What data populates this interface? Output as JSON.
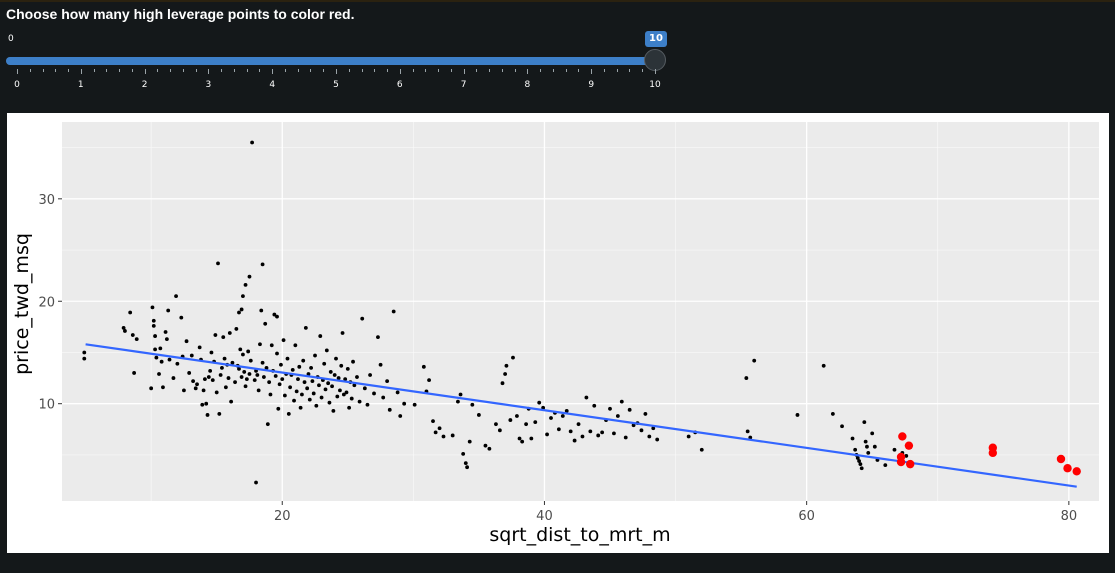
{
  "prompt": "Choose how many high leverage points to color red.",
  "slider": {
    "min": 0,
    "max": 10,
    "value": 10,
    "min_label": "0",
    "value_label": "10",
    "tick_labels": [
      "0",
      "1",
      "2",
      "3",
      "4",
      "5",
      "6",
      "7",
      "8",
      "9",
      "10"
    ],
    "accent_color": "#3d7fc8"
  },
  "chart_data": {
    "type": "scatter",
    "xlabel": "sqrt_dist_to_mrt_m",
    "ylabel": "price_twd_msq",
    "xlim": [
      3.2,
      82.3
    ],
    "ylim": [
      0.5,
      37.5
    ],
    "x_ticks": [
      20,
      40,
      60,
      80
    ],
    "x_tick_labels": [
      "20",
      "40",
      "60",
      "80"
    ],
    "y_ticks": [
      10,
      20,
      30
    ],
    "y_tick_labels": [
      "10",
      "20",
      "30"
    ],
    "grid": true,
    "panel_background": "#ebebeb",
    "point_color": "#000000",
    "highlight_color": "#ff0000",
    "fit_color": "#3366ff",
    "fit_line": {
      "x": [
        5.0,
        80.6
      ],
      "y": [
        15.8,
        1.9
      ]
    },
    "points": [
      [
        4.9,
        15.0
      ],
      [
        4.9,
        14.4
      ],
      [
        7.9,
        17.4
      ],
      [
        8.0,
        17.1
      ],
      [
        8.4,
        18.9
      ],
      [
        8.6,
        16.7
      ],
      [
        8.7,
        13.0
      ],
      [
        8.9,
        16.3
      ],
      [
        10.0,
        11.5
      ],
      [
        10.1,
        19.4
      ],
      [
        10.2,
        18.1
      ],
      [
        10.2,
        17.6
      ],
      [
        10.3,
        16.6
      ],
      [
        10.3,
        15.3
      ],
      [
        10.4,
        14.5
      ],
      [
        10.6,
        12.9
      ],
      [
        10.7,
        15.4
      ],
      [
        10.8,
        14.1
      ],
      [
        10.9,
        11.6
      ],
      [
        11.1,
        17.0
      ],
      [
        11.2,
        16.3
      ],
      [
        11.3,
        19.1
      ],
      [
        11.4,
        14.3
      ],
      [
        11.7,
        12.5
      ],
      [
        11.9,
        20.5
      ],
      [
        12.0,
        13.9
      ],
      [
        12.3,
        18.4
      ],
      [
        12.4,
        14.6
      ],
      [
        12.5,
        11.3
      ],
      [
        12.7,
        16.1
      ],
      [
        12.9,
        13.0
      ],
      [
        13.1,
        14.7
      ],
      [
        13.2,
        12.2
      ],
      [
        13.4,
        11.5
      ],
      [
        13.5,
        11.9
      ],
      [
        13.7,
        15.5
      ],
      [
        13.8,
        14.3
      ],
      [
        13.9,
        9.9
      ],
      [
        14.0,
        11.3
      ],
      [
        14.1,
        12.4
      ],
      [
        14.2,
        10.0
      ],
      [
        14.3,
        8.9
      ],
      [
        14.4,
        12.6
      ],
      [
        14.5,
        13.2
      ],
      [
        14.6,
        15.0
      ],
      [
        14.7,
        12.3
      ],
      [
        14.8,
        14.1
      ],
      [
        14.9,
        16.7
      ],
      [
        15.0,
        11.1
      ],
      [
        15.1,
        23.7
      ],
      [
        15.2,
        9.0
      ],
      [
        15.3,
        12.8
      ],
      [
        15.4,
        13.5
      ],
      [
        15.5,
        16.5
      ],
      [
        15.6,
        14.4
      ],
      [
        15.7,
        11.6
      ],
      [
        15.8,
        13.8
      ],
      [
        15.9,
        12.5
      ],
      [
        16.0,
        16.9
      ],
      [
        16.1,
        10.2
      ],
      [
        16.2,
        14.0
      ],
      [
        16.4,
        12.1
      ],
      [
        16.5,
        17.3
      ],
      [
        16.6,
        13.7
      ],
      [
        16.7,
        13.4
      ],
      [
        16.8,
        15.3
      ],
      [
        16.9,
        12.6
      ],
      [
        17.0,
        14.8
      ],
      [
        17.1,
        13.1
      ],
      [
        17.2,
        11.7
      ],
      [
        17.3,
        12.4
      ],
      [
        17.4,
        15.1
      ],
      [
        17.5,
        12.9
      ],
      [
        17.6,
        14.2
      ],
      [
        17.7,
        35.5
      ],
      [
        17.9,
        12.3
      ],
      [
        18.0,
        13.2
      ],
      [
        18.1,
        12.8
      ],
      [
        18.2,
        11.3
      ],
      [
        18.3,
        15.8
      ],
      [
        18.4,
        19.1
      ],
      [
        18.5,
        14.0
      ],
      [
        18.6,
        12.6
      ],
      [
        18.7,
        17.8
      ],
      [
        18.8,
        13.5
      ],
      [
        18.9,
        8.0
      ],
      [
        19.0,
        12.1
      ],
      [
        19.1,
        10.9
      ],
      [
        19.2,
        15.7
      ],
      [
        19.3,
        13.2
      ],
      [
        19.4,
        18.7
      ],
      [
        19.5,
        12.7
      ],
      [
        19.6,
        14.9
      ],
      [
        19.7,
        9.5
      ],
      [
        19.8,
        11.9
      ],
      [
        19.9,
        13.8
      ],
      [
        20.0,
        12.4
      ],
      [
        20.1,
        16.2
      ],
      [
        20.2,
        10.8
      ],
      [
        20.3,
        12.9
      ],
      [
        20.4,
        14.4
      ],
      [
        20.5,
        9.0
      ],
      [
        20.6,
        11.6
      ],
      [
        20.7,
        12.8
      ],
      [
        20.8,
        13.3
      ],
      [
        20.9,
        10.3
      ],
      [
        21.0,
        15.7
      ],
      [
        21.1,
        11.2
      ],
      [
        21.2,
        12.4
      ],
      [
        21.3,
        13.6
      ],
      [
        21.4,
        9.6
      ],
      [
        21.5,
        10.9
      ],
      [
        21.6,
        14.2
      ],
      [
        21.7,
        12.1
      ],
      [
        21.8,
        17.4
      ],
      [
        21.9,
        11.5
      ],
      [
        22.0,
        12.9
      ],
      [
        22.1,
        10.4
      ],
      [
        22.2,
        13.5
      ],
      [
        22.3,
        12.2
      ],
      [
        22.4,
        11.0
      ],
      [
        22.5,
        14.7
      ],
      [
        22.6,
        9.8
      ],
      [
        22.7,
        12.6
      ],
      [
        22.8,
        11.8
      ],
      [
        22.9,
        16.6
      ],
      [
        23.0,
        10.6
      ],
      [
        23.1,
        12.3
      ],
      [
        23.2,
        13.9
      ],
      [
        23.3,
        11.4
      ],
      [
        23.4,
        15.2
      ],
      [
        23.5,
        12.0
      ],
      [
        23.6,
        10.1
      ],
      [
        23.7,
        13.1
      ],
      [
        23.8,
        11.7
      ],
      [
        23.9,
        9.3
      ],
      [
        24.0,
        12.8
      ],
      [
        24.1,
        14.4
      ],
      [
        24.2,
        10.7
      ],
      [
        24.3,
        12.5
      ],
      [
        24.4,
        11.3
      ],
      [
        24.5,
        13.7
      ],
      [
        24.6,
        16.9
      ],
      [
        24.7,
        10.9
      ],
      [
        24.8,
        12.4
      ],
      [
        24.9,
        11.1
      ],
      [
        25.0,
        13.4
      ],
      [
        25.1,
        9.6
      ],
      [
        25.2,
        12.1
      ],
      [
        25.3,
        10.5
      ],
      [
        25.4,
        14.1
      ],
      [
        25.5,
        11.8
      ],
      [
        25.7,
        12.6
      ],
      [
        25.9,
        10.2
      ],
      [
        26.1,
        18.3
      ],
      [
        26.3,
        11.5
      ],
      [
        26.5,
        9.9
      ],
      [
        26.7,
        12.8
      ],
      [
        27.0,
        11.0
      ],
      [
        27.3,
        16.5
      ],
      [
        27.5,
        13.8
      ],
      [
        27.7,
        10.6
      ],
      [
        28.0,
        12.2
      ],
      [
        28.2,
        9.4
      ],
      [
        28.5,
        19.0
      ],
      [
        28.8,
        11.1
      ],
      [
        29.0,
        8.8
      ],
      [
        29.3,
        10.0
      ],
      [
        18.0,
        2.3
      ],
      [
        17.0,
        20.5
      ],
      [
        17.2,
        21.6
      ],
      [
        17.5,
        22.4
      ],
      [
        18.5,
        23.6
      ],
      [
        16.7,
        18.9
      ],
      [
        16.9,
        19.2
      ],
      [
        19.6,
        18.5
      ],
      [
        30.1,
        9.9
      ],
      [
        30.8,
        13.6
      ],
      [
        31.0,
        11.2
      ],
      [
        31.2,
        12.3
      ],
      [
        31.5,
        8.3
      ],
      [
        31.7,
        7.2
      ],
      [
        32.0,
        7.6
      ],
      [
        32.3,
        6.8
      ],
      [
        33.0,
        6.9
      ],
      [
        33.4,
        10.2
      ],
      [
        33.6,
        10.9
      ],
      [
        33.8,
        5.1
      ],
      [
        34.0,
        4.2
      ],
      [
        34.1,
        3.8
      ],
      [
        34.3,
        6.3
      ],
      [
        34.5,
        9.9
      ],
      [
        35.0,
        8.9
      ],
      [
        35.5,
        5.9
      ],
      [
        35.8,
        5.6
      ],
      [
        36.3,
        8.0
      ],
      [
        36.6,
        7.4
      ],
      [
        36.8,
        12.0
      ],
      [
        37.0,
        12.9
      ],
      [
        37.1,
        13.7
      ],
      [
        37.4,
        8.4
      ],
      [
        37.6,
        14.5
      ],
      [
        37.9,
        8.8
      ],
      [
        38.1,
        6.6
      ],
      [
        38.3,
        6.3
      ],
      [
        38.6,
        8.0
      ],
      [
        38.8,
        9.5
      ],
      [
        39.0,
        6.6
      ],
      [
        39.3,
        8.2
      ],
      [
        39.6,
        10.1
      ],
      [
        39.9,
        9.6
      ],
      [
        40.2,
        7.0
      ],
      [
        40.5,
        8.6
      ],
      [
        40.8,
        9.1
      ],
      [
        41.1,
        7.5
      ],
      [
        41.4,
        8.8
      ],
      [
        41.7,
        9.3
      ],
      [
        42.0,
        7.3
      ],
      [
        42.3,
        6.4
      ],
      [
        42.6,
        8.0
      ],
      [
        42.9,
        6.8
      ],
      [
        43.2,
        10.6
      ],
      [
        43.5,
        7.3
      ],
      [
        43.8,
        9.8
      ],
      [
        44.1,
        6.9
      ],
      [
        44.4,
        7.2
      ],
      [
        44.7,
        8.4
      ],
      [
        45.0,
        9.5
      ],
      [
        45.3,
        7.1
      ],
      [
        45.6,
        8.8
      ],
      [
        45.9,
        10.2
      ],
      [
        46.2,
        6.7
      ],
      [
        46.5,
        9.4
      ],
      [
        46.8,
        7.9
      ],
      [
        47.1,
        8.1
      ],
      [
        47.4,
        7.4
      ],
      [
        47.7,
        9.0
      ],
      [
        48.0,
        6.8
      ],
      [
        48.3,
        7.6
      ],
      [
        48.6,
        6.5
      ],
      [
        51.0,
        6.8
      ],
      [
        51.5,
        7.2
      ],
      [
        52.0,
        5.5
      ],
      [
        55.4,
        12.5
      ],
      [
        55.5,
        7.3
      ],
      [
        55.7,
        6.7
      ],
      [
        56.0,
        14.2
      ],
      [
        59.3,
        8.9
      ],
      [
        61.3,
        13.7
      ],
      [
        62.0,
        9.0
      ],
      [
        62.7,
        7.8
      ],
      [
        63.5,
        6.6
      ],
      [
        63.7,
        5.5
      ],
      [
        63.8,
        5.0
      ],
      [
        63.9,
        4.7
      ],
      [
        64.0,
        4.4
      ],
      [
        64.1,
        4.1
      ],
      [
        64.2,
        3.7
      ],
      [
        64.4,
        8.2
      ],
      [
        64.5,
        6.3
      ],
      [
        64.6,
        5.8
      ],
      [
        64.7,
        5.2
      ],
      [
        65.0,
        7.1
      ],
      [
        65.2,
        5.8
      ],
      [
        65.4,
        4.5
      ],
      [
        66.0,
        4.0
      ],
      [
        66.7,
        5.5
      ],
      [
        67.3,
        5.2
      ],
      [
        67.6,
        4.9
      ],
      [
        67.9,
        4.3
      ]
    ],
    "highlighted_points": [
      [
        67.3,
        6.8
      ],
      [
        67.8,
        5.9
      ],
      [
        67.2,
        4.8
      ],
      [
        67.2,
        4.3
      ],
      [
        67.9,
        4.1
      ],
      [
        74.2,
        5.7
      ],
      [
        74.2,
        5.2
      ],
      [
        79.4,
        4.6
      ],
      [
        79.9,
        3.7
      ],
      [
        80.6,
        3.4
      ]
    ]
  }
}
